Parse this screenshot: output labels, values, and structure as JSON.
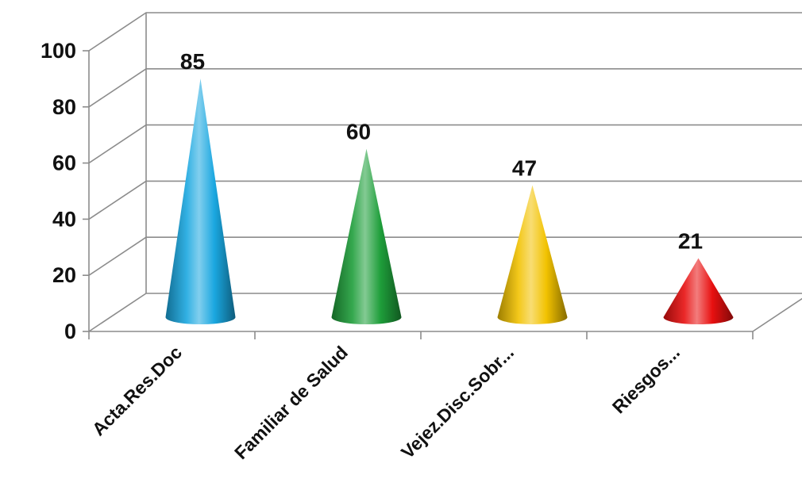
{
  "chart_data": {
    "type": "bar",
    "bar_shape": "3d-cone",
    "title": "",
    "xlabel": "",
    "ylabel": "",
    "categories": [
      "Acta.Res.Doc",
      "Familiar de Salud",
      "Vejez.Disc.Sobr...",
      "Riesgos..."
    ],
    "values": [
      85,
      60,
      47,
      21
    ],
    "data_labels": [
      "85",
      "60",
      "47",
      "21"
    ],
    "yticks": [
      0,
      20,
      40,
      60,
      80,
      100
    ],
    "ytick_labels": [
      "0",
      "20",
      "40",
      "60",
      "80",
      "100"
    ],
    "ylim": [
      0,
      100
    ],
    "grid": true,
    "legend": "none",
    "colors": [
      "#1aa7e0",
      "#1e9e3a",
      "#f2c200",
      "#e81010"
    ],
    "gridline_color": "#8c8c8c"
  }
}
